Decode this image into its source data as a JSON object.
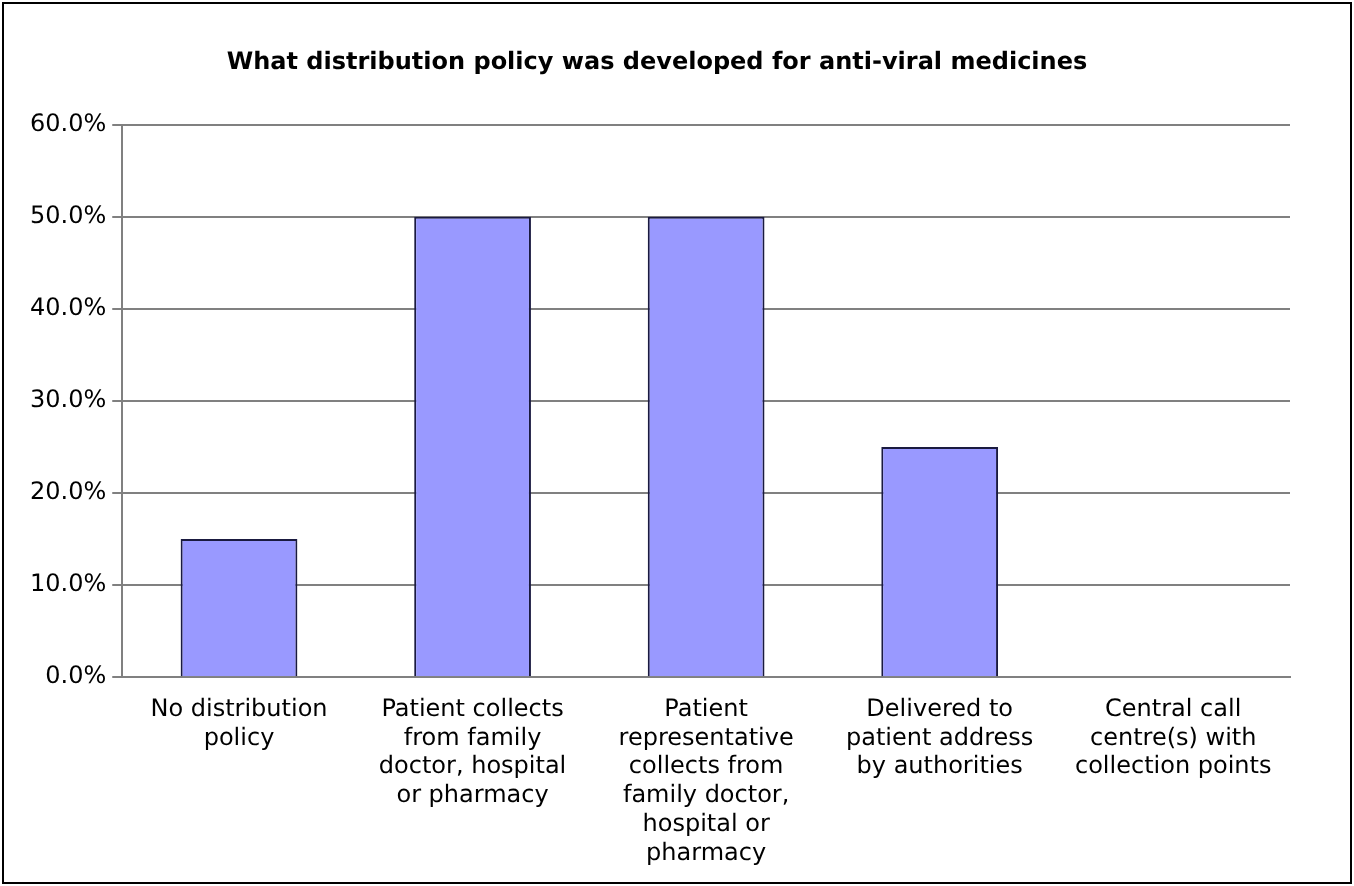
{
  "chart_data": {
    "type": "bar",
    "title": "What distribution policy was developed for anti-viral medicines",
    "categories": [
      "No distribution policy",
      "Patient collects from family doctor, hospital or pharmacy",
      "Patient representative collects from family doctor, hospital or pharmacy",
      "Delivered to patient address by authorities",
      "Central call centre(s) with collection points"
    ],
    "values": [
      15,
      50,
      50,
      25,
      0
    ],
    "color": "#9999ff",
    "ylim": [
      0,
      60
    ],
    "yticks": [
      {
        "value": 0,
        "label": "0.0%"
      },
      {
        "value": 10,
        "label": "10.0%"
      },
      {
        "value": 20,
        "label": "20.0%"
      },
      {
        "value": 30,
        "label": "30.0%"
      },
      {
        "value": 40,
        "label": "40.0%"
      },
      {
        "value": 50,
        "label": "50.0%"
      },
      {
        "value": 60,
        "label": "60.0%"
      }
    ],
    "grid": "y",
    "legend": false
  }
}
